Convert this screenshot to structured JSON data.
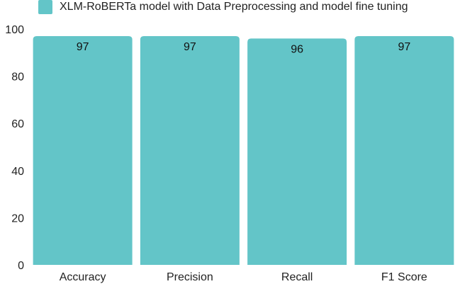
{
  "chart_data": {
    "type": "bar",
    "categories": [
      "Accuracy",
      "Precision",
      "Recall",
      "F1 Score"
    ],
    "series": [
      {
        "name": "XLM-RoBERTa model with Data Preprocessing and model fine tuning",
        "values": [
          97,
          97,
          96,
          97
        ],
        "color": "#63c5c8"
      }
    ],
    "data_labels": [
      "97",
      "97",
      "96",
      "97"
    ],
    "yticks": [
      0,
      20,
      40,
      60,
      80,
      100
    ],
    "ylim": [
      0,
      100
    ],
    "grid": false,
    "legend_position": "top-left"
  }
}
